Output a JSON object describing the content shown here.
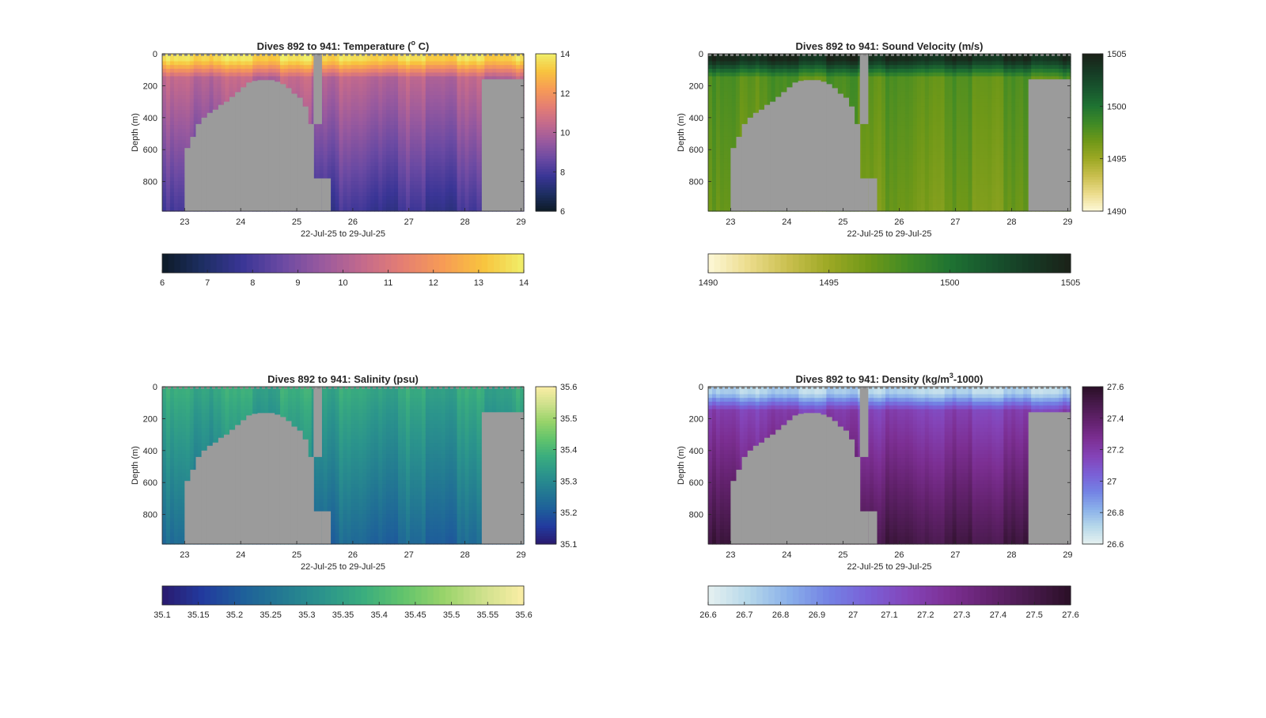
{
  "figure": {
    "background": "#ffffff",
    "land_color": "#9b9b9b"
  },
  "charts": [
    {
      "id": "temperature",
      "title_main": "Dives 892 to 941: Temperature (",
      "title_sup": "o",
      "title_end": " C)",
      "ylabel": "Depth (m)",
      "xlabel": "22-Jul-25 to 29-Jul-25",
      "colormap": [
        "#0d1a26",
        "#1d2e63",
        "#3a3596",
        "#6b4aa3",
        "#9a5a9e",
        "#c46a8c",
        "#e57f72",
        "#f79c55",
        "#f8c43e",
        "#f0ef6a"
      ],
      "cbar_right_ticks": [
        "14",
        "12",
        "10",
        "8",
        "6"
      ],
      "cbar_bottom_ticks": [
        "6",
        "7",
        "8",
        "9",
        "10",
        "11",
        "12",
        "13",
        "14"
      ]
    },
    {
      "id": "sound-velocity",
      "title_main": "Dives 892 to 941: Sound Velocity (m/s)",
      "title_sup": "",
      "title_end": "",
      "ylabel": "Depth (m)",
      "xlabel": "22-Jul-25 to 29-Jul-25",
      "colormap": [
        "#fdf8d8",
        "#ecdc8c",
        "#c9bf4e",
        "#9ca824",
        "#6f9818",
        "#3f8a26",
        "#1f7332",
        "#18552e",
        "#163a24",
        "#1b2118"
      ],
      "cbar_right_ticks": [
        "1505",
        "1500",
        "1495",
        "1490"
      ],
      "cbar_bottom_ticks": [
        "1490",
        "1495",
        "1500",
        "1505"
      ]
    },
    {
      "id": "salinity",
      "title_main": "Dives 892 to 941: Salinity (psu)",
      "title_sup": "",
      "title_end": "",
      "ylabel": "Depth (m)",
      "xlabel": "22-Jul-25 to 29-Jul-25",
      "colormap": [
        "#2a1a6e",
        "#223a9e",
        "#1e5f9a",
        "#237a92",
        "#2b948c",
        "#3aad7e",
        "#62c46c",
        "#98d36a",
        "#cfe18c",
        "#fbeea6"
      ],
      "cbar_right_ticks": [
        "35.6",
        "35.5",
        "35.4",
        "35.3",
        "35.2",
        "35.1"
      ],
      "cbar_bottom_ticks": [
        "35.1",
        "35.15",
        "35.2",
        "35.25",
        "35.3",
        "35.35",
        "35.4",
        "35.45",
        "35.5",
        "35.55",
        "35.6"
      ]
    },
    {
      "id": "density",
      "title_main": "Dives 892 to 941: Density (kg/m",
      "title_sup": "3",
      "title_end": "-1000)",
      "ylabel": "Depth (m)",
      "xlabel": "22-Jul-25 to 29-Jul-25",
      "colormap": [
        "#e6f1f1",
        "#b6d8ea",
        "#8ab0ea",
        "#7382e4",
        "#7a5fd6",
        "#8444b8",
        "#7c2f93",
        "#63226e",
        "#481a4c",
        "#2a0f26"
      ],
      "cbar_right_ticks": [
        "27.6",
        "27.4",
        "27.2",
        "27",
        "26.8",
        "26.6"
      ],
      "cbar_bottom_ticks": [
        "26.6",
        "26.7",
        "26.8",
        "26.9",
        "27",
        "27.1",
        "27.2",
        "27.3",
        "27.4",
        "27.5",
        "27.6"
      ]
    }
  ],
  "chart_data": [
    {
      "type": "heatmap",
      "title": "Dives 892 to 941: Temperature (o C)",
      "xlabel": "22-Jul-25 to 29-Jul-25",
      "ylabel": "Depth (m)",
      "x_ticks": [
        "23",
        "24",
        "25",
        "26",
        "27",
        "28",
        "29"
      ],
      "y_ticks": [
        "0",
        "200",
        "400",
        "600",
        "800"
      ],
      "xlim": [
        22.6,
        29.05
      ],
      "ylim": [
        0,
        985
      ],
      "clim": [
        6,
        14
      ],
      "surface_value": 13.8,
      "mid_value": 10.5,
      "deep_value": 8.0,
      "colorbar_ticks": [
        6,
        7,
        8,
        9,
        10,
        11,
        12,
        13,
        14
      ]
    },
    {
      "type": "heatmap",
      "title": "Dives 892 to 941: Sound Velocity (m/s)",
      "xlabel": "22-Jul-25 to 29-Jul-25",
      "ylabel": "Depth (m)",
      "x_ticks": [
        "23",
        "24",
        "25",
        "26",
        "27",
        "28",
        "29"
      ],
      "y_ticks": [
        "0",
        "200",
        "400",
        "600",
        "800"
      ],
      "xlim": [
        22.6,
        29.05
      ],
      "ylim": [
        0,
        985
      ],
      "clim": [
        1490,
        1505
      ],
      "surface_value": 1504.5,
      "mid_value": 1498.0,
      "deep_value": 1497.0,
      "colorbar_ticks": [
        1490,
        1495,
        1500,
        1505
      ]
    },
    {
      "type": "heatmap",
      "title": "Dives 892 to 941: Salinity (psu)",
      "xlabel": "22-Jul-25 to 29-Jul-25",
      "ylabel": "Depth (m)",
      "x_ticks": [
        "23",
        "24",
        "25",
        "26",
        "27",
        "28",
        "29"
      ],
      "y_ticks": [
        "0",
        "200",
        "400",
        "600",
        "800"
      ],
      "xlim": [
        22.6,
        29.05
      ],
      "ylim": [
        0,
        985
      ],
      "clim": [
        35.1,
        35.6
      ],
      "surface_value": 35.38,
      "mid_value": 35.36,
      "deep_value": 35.24,
      "colorbar_ticks": [
        35.1,
        35.15,
        35.2,
        35.25,
        35.3,
        35.35,
        35.4,
        35.45,
        35.5,
        35.55,
        35.6
      ]
    },
    {
      "type": "heatmap",
      "title": "Dives 892 to 941: Density (kg/m3-1000)",
      "xlabel": "22-Jul-25 to 29-Jul-25",
      "ylabel": "Depth (m)",
      "x_ticks": [
        "23",
        "24",
        "25",
        "26",
        "27",
        "28",
        "29"
      ],
      "y_ticks": [
        "0",
        "200",
        "400",
        "600",
        "800"
      ],
      "xlim": [
        22.6,
        29.05
      ],
      "ylim": [
        0,
        985
      ],
      "clim": [
        26.6,
        27.6
      ],
      "surface_value": 26.75,
      "mid_value": 27.2,
      "deep_value": 27.55,
      "colorbar_ticks": [
        26.6,
        26.7,
        26.8,
        26.9,
        27,
        27.1,
        27.2,
        27.3,
        27.4,
        27.5,
        27.6
      ]
    }
  ],
  "seafloor": {
    "note_units": "time in days of July 2025, depth in m",
    "ridge_profile": [
      [
        22.6,
        985
      ],
      [
        22.85,
        985
      ],
      [
        23.0,
        590
      ],
      [
        23.1,
        520
      ],
      [
        23.2,
        440
      ],
      [
        23.3,
        400
      ],
      [
        23.4,
        370
      ],
      [
        23.5,
        350
      ],
      [
        23.6,
        320
      ],
      [
        23.7,
        300
      ],
      [
        23.8,
        270
      ],
      [
        23.9,
        240
      ],
      [
        24.0,
        210
      ],
      [
        24.1,
        180
      ],
      [
        24.2,
        170
      ],
      [
        24.3,
        165
      ],
      [
        24.4,
        165
      ],
      [
        24.5,
        165
      ],
      [
        24.6,
        175
      ],
      [
        24.7,
        190
      ],
      [
        24.8,
        215
      ],
      [
        24.9,
        250
      ],
      [
        25.0,
        275
      ],
      [
        25.1,
        330
      ],
      [
        25.2,
        440
      ],
      [
        25.3,
        0
      ],
      [
        25.45,
        780
      ],
      [
        25.6,
        985
      ]
    ],
    "gap_column": [
      25.3,
      25.45
    ],
    "right_block": {
      "x_from": 28.3,
      "top_depth": 160
    }
  }
}
